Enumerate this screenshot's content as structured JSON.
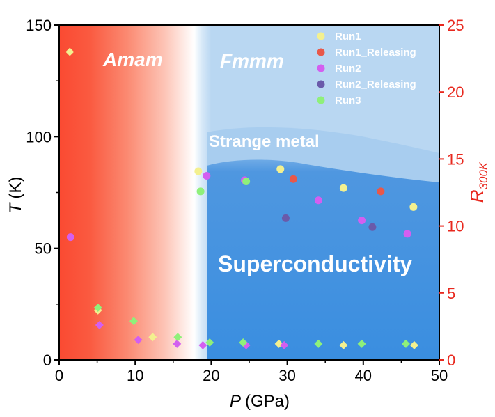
{
  "chart_data": {
    "type": "scatter",
    "title": "",
    "xlabel": "P",
    "xlabel_unit": "(GPa)",
    "ylabel": "T",
    "ylabel_unit": "(K)",
    "y2label_main": "R",
    "y2label_sub": "300K",
    "xlim": [
      0,
      50
    ],
    "ylim": [
      0,
      150
    ],
    "y2lim": [
      0,
      25
    ],
    "xticks": [
      "0",
      "10",
      "20",
      "30",
      "40",
      "50"
    ],
    "yticks": [
      "0",
      "50",
      "100",
      "150"
    ],
    "y2ticks": [
      "0",
      "5",
      "10",
      "15",
      "20",
      "25"
    ],
    "regions": {
      "phase_left": "Amam",
      "phase_right": "Fmmm",
      "strange_metal": "Strange metal",
      "superconductivity": "Superconductivity"
    },
    "colors": {
      "run1": "#f3f08f",
      "run1_releasing": "#e8584a",
      "run2": "#d35ff0",
      "run2_releasing": "#6a5aaa",
      "run3": "#8ff07a",
      "red_phase": "#fa4a32",
      "blue_phase": "#3a8ee0",
      "axis_right": "#e8281e"
    },
    "legend": [
      "Run1",
      "Run1_Releasing",
      "Run2",
      "Run2_Releasing",
      "Run3"
    ],
    "series": [
      {
        "name": "Run1",
        "marker": "circle",
        "axis": "T",
        "points": [
          [
            18.3,
            84.5
          ],
          [
            29.1,
            85.5
          ],
          [
            37.4,
            77
          ],
          [
            46.6,
            68.5
          ]
        ]
      },
      {
        "name": "Run1_Releasing",
        "marker": "circle",
        "axis": "T",
        "points": [
          [
            30.8,
            81
          ],
          [
            42.3,
            75.5
          ]
        ]
      },
      {
        "name": "Run2",
        "marker": "circle",
        "axis": "T",
        "points": [
          [
            1.5,
            55
          ],
          [
            19.4,
            82.5
          ],
          [
            24.4,
            80.5
          ],
          [
            34.1,
            71.5
          ],
          [
            39.8,
            62.5
          ],
          [
            45.8,
            56.5
          ]
        ]
      },
      {
        "name": "Run2_Releasing",
        "marker": "circle",
        "axis": "T",
        "points": [
          [
            29.8,
            63.5
          ],
          [
            41.2,
            59.5
          ]
        ]
      },
      {
        "name": "Run3",
        "marker": "circle",
        "axis": "T",
        "points": [
          [
            18.6,
            75.5
          ],
          [
            24.6,
            80
          ]
        ]
      },
      {
        "name": "Run1",
        "marker": "diamond",
        "axis": "R300K",
        "points": [
          [
            1.4,
            23
          ],
          [
            5.1,
            3.7
          ],
          [
            12.3,
            1.7
          ],
          [
            28.9,
            1.2
          ],
          [
            37.4,
            1.1
          ],
          [
            46.7,
            1.1
          ]
        ]
      },
      {
        "name": "Run2",
        "marker": "diamond",
        "axis": "R300K",
        "points": [
          [
            5.3,
            2.6
          ],
          [
            10.4,
            1.5
          ],
          [
            15.5,
            1.2
          ],
          [
            18.9,
            1.1
          ],
          [
            24.6,
            1.1
          ],
          [
            29.6,
            1.1
          ]
        ]
      },
      {
        "name": "Run3",
        "marker": "diamond",
        "axis": "R300K",
        "points": [
          [
            5.1,
            3.9
          ],
          [
            9.8,
            2.9
          ],
          [
            15.6,
            1.7
          ],
          [
            19.8,
            1.3
          ],
          [
            24.2,
            1.3
          ],
          [
            34.1,
            1.2
          ],
          [
            39.8,
            1.2
          ],
          [
            45.6,
            1.2
          ]
        ]
      }
    ]
  }
}
